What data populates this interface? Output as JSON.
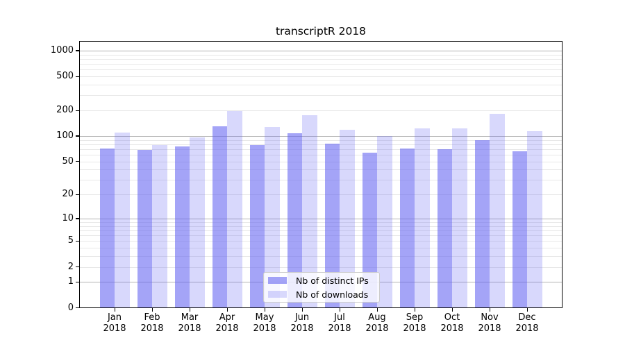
{
  "chart_data": {
    "type": "bar",
    "title": "transcriptR 2018",
    "categories": [
      "Jan 2018",
      "Feb 2018",
      "Mar 2018",
      "Apr 2018",
      "May 2018",
      "Jun 2018",
      "Jul 2018",
      "Aug 2018",
      "Sep 2018",
      "Oct 2018",
      "Nov 2018",
      "Dec 2018"
    ],
    "series": [
      {
        "name": "Nb of distinct IPs",
        "values": [
          71,
          68,
          75,
          130,
          78,
          106,
          80,
          63,
          71,
          69,
          89,
          66
        ],
        "color": "rgba(98,98,242,0.58)"
      },
      {
        "name": "Nb of downloads",
        "values": [
          109,
          78,
          95,
          195,
          126,
          175,
          118,
          100,
          122,
          123,
          180,
          114
        ],
        "color": "rgba(98,98,242,0.25)"
      }
    ],
    "xlabel": "",
    "ylabel": "",
    "yscale": "log1p",
    "yticks": [
      1000,
      500,
      200,
      100,
      50,
      20,
      10,
      5,
      2,
      1,
      0
    ],
    "ylim": [
      0,
      1285
    ],
    "grid": true,
    "legend_position": "lower-center",
    "colors": {
      "bar_base": "#6262f2",
      "grid_major": "#b2b2b2",
      "grid_minor": "#e7e7e7",
      "axis": "#000000"
    }
  }
}
